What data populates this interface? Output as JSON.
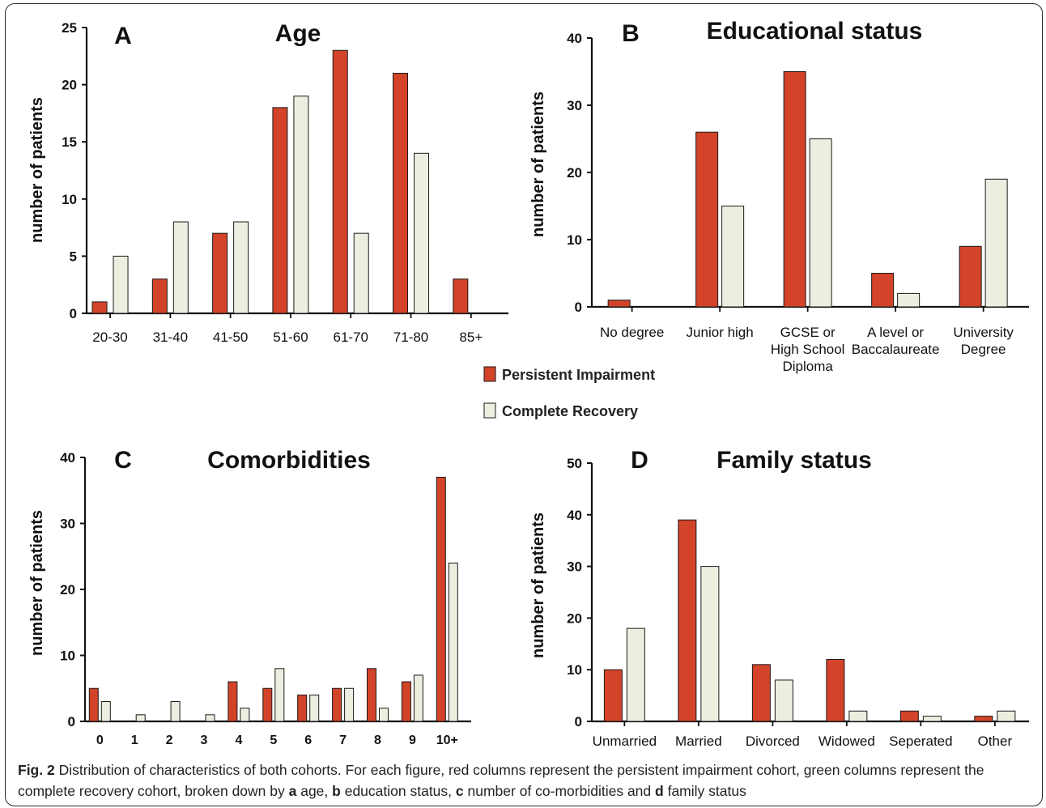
{
  "colors": {
    "persistent": "#d2432a",
    "recovery": "#ecefe0",
    "stroke": "#1a1a1a"
  },
  "legend": {
    "persistent_label": "Persistent Impairment",
    "recovery_label": "Complete Recovery"
  },
  "caption": {
    "fig_label": "Fig. 2",
    "text_1": " Distribution of characteristics of both cohorts. For each figure, red columns represent the persistent impairment cohort, green columns represent the complete recovery cohort, broken down by ",
    "key_a": "a",
    "text_a": " age, ",
    "key_b": "b",
    "text_b": " education status, ",
    "key_c": "c",
    "text_c": " number of co-morbidities and ",
    "key_d": "d",
    "text_d": " family status"
  },
  "chart_data": [
    {
      "type": "bar",
      "panel": "A",
      "title": "Age",
      "ylabel": "number of patients",
      "ylim": [
        0,
        25
      ],
      "yticks": [
        "0",
        "5",
        "10",
        "15",
        "20",
        "25"
      ],
      "categories": [
        "20-30",
        "31-40",
        "41-50",
        "51-60",
        "61-70",
        "71-80",
        "85+"
      ],
      "series": [
        {
          "name": "Persistent Impairment",
          "values": [
            1,
            3,
            7,
            18,
            23,
            21,
            3
          ]
        },
        {
          "name": "Complete Recovery",
          "values": [
            5,
            8,
            8,
            19,
            7,
            14,
            0
          ]
        }
      ]
    },
    {
      "type": "bar",
      "panel": "B",
      "title": "Educational status",
      "ylabel": "number of patients",
      "ylim": [
        0,
        40
      ],
      "yticks": [
        "0",
        "10",
        "20",
        "30",
        "40"
      ],
      "categories": [
        [
          "No degree"
        ],
        [
          "Junior high"
        ],
        [
          "GCSE or",
          "High School",
          "Diploma"
        ],
        [
          "A level or",
          "Baccalaureate"
        ],
        [
          "University",
          "Degree"
        ]
      ],
      "series": [
        {
          "name": "Persistent Impairment",
          "values": [
            1,
            26,
            35,
            5,
            9
          ]
        },
        {
          "name": "Complete Recovery",
          "values": [
            0,
            15,
            25,
            2,
            19
          ]
        }
      ]
    },
    {
      "type": "bar",
      "panel": "C",
      "title": "Comorbidities",
      "ylabel": "number of patients",
      "ylim": [
        0,
        40
      ],
      "yticks": [
        "0",
        "10",
        "20",
        "30",
        "40"
      ],
      "categories": [
        "0",
        "1",
        "2",
        "3",
        "4",
        "5",
        "6",
        "7",
        "8",
        "9",
        "10+"
      ],
      "series": [
        {
          "name": "Persistent Impairment",
          "values": [
            5,
            0,
            0,
            0,
            6,
            5,
            4,
            5,
            8,
            6,
            37
          ]
        },
        {
          "name": "Complete Recovery",
          "values": [
            3,
            1,
            3,
            1,
            2,
            8,
            4,
            5,
            2,
            7,
            24
          ]
        }
      ]
    },
    {
      "type": "bar",
      "panel": "D",
      "title": "Family status",
      "ylabel": "number of patients",
      "ylim": [
        0,
        50
      ],
      "yticks": [
        "0",
        "10",
        "20",
        "30",
        "40",
        "50"
      ],
      "categories": [
        "Unmarried",
        "Married",
        "Divorced",
        "Widowed",
        "Seperated",
        "Other"
      ],
      "series": [
        {
          "name": "Persistent Impairment",
          "values": [
            10,
            39,
            11,
            12,
            2,
            1
          ]
        },
        {
          "name": "Complete Recovery",
          "values": [
            18,
            30,
            8,
            2,
            1,
            2
          ]
        }
      ]
    }
  ]
}
